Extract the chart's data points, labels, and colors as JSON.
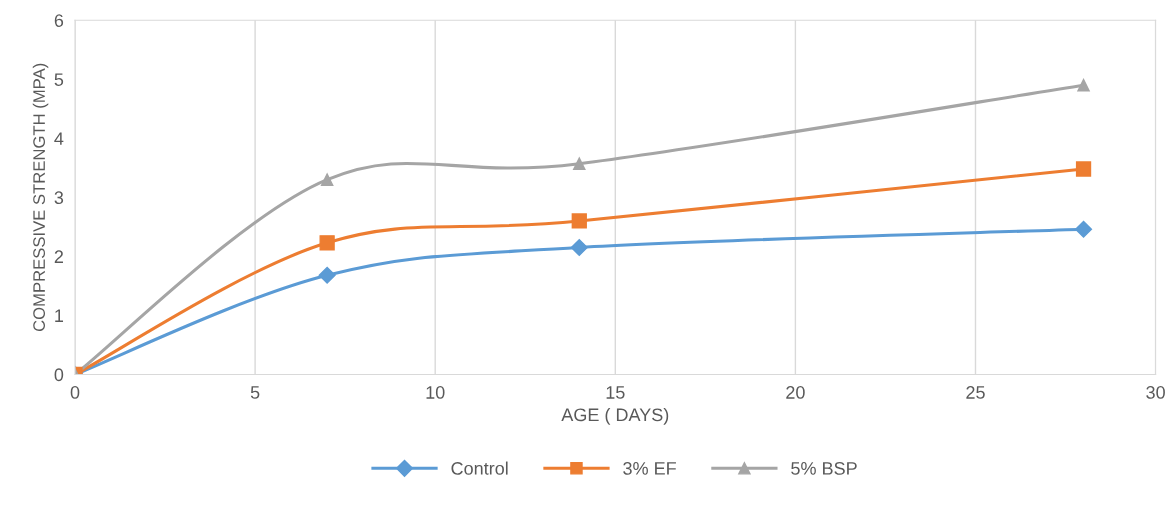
{
  "chart_data": {
    "type": "line",
    "xlabel": "AGE ( DAYS)",
    "ylabel": "COMPRESSIVE STRENGTH (MPA)",
    "x": [
      0,
      7,
      14,
      28
    ],
    "series": [
      {
        "name": "Control",
        "color": "#5b9bd5",
        "marker": "diamond",
        "values": [
          0,
          1.68,
          2.15,
          2.46
        ]
      },
      {
        "name": "3% EF",
        "color": "#ed7d31",
        "marker": "square",
        "values": [
          0,
          2.23,
          2.6,
          3.48
        ]
      },
      {
        "name": "5% BSP",
        "color": "#a5a5a5",
        "marker": "triangle",
        "values": [
          0,
          3.3,
          3.57,
          4.9
        ]
      }
    ],
    "xlim": [
      0,
      30
    ],
    "xticks": [
      0,
      5,
      10,
      15,
      20,
      25,
      30
    ],
    "ylim": [
      0,
      6
    ],
    "yticks": [
      0,
      1,
      2,
      3,
      4,
      5,
      6
    ],
    "grid": "x",
    "legend": "bottom",
    "line_style": "solid"
  }
}
